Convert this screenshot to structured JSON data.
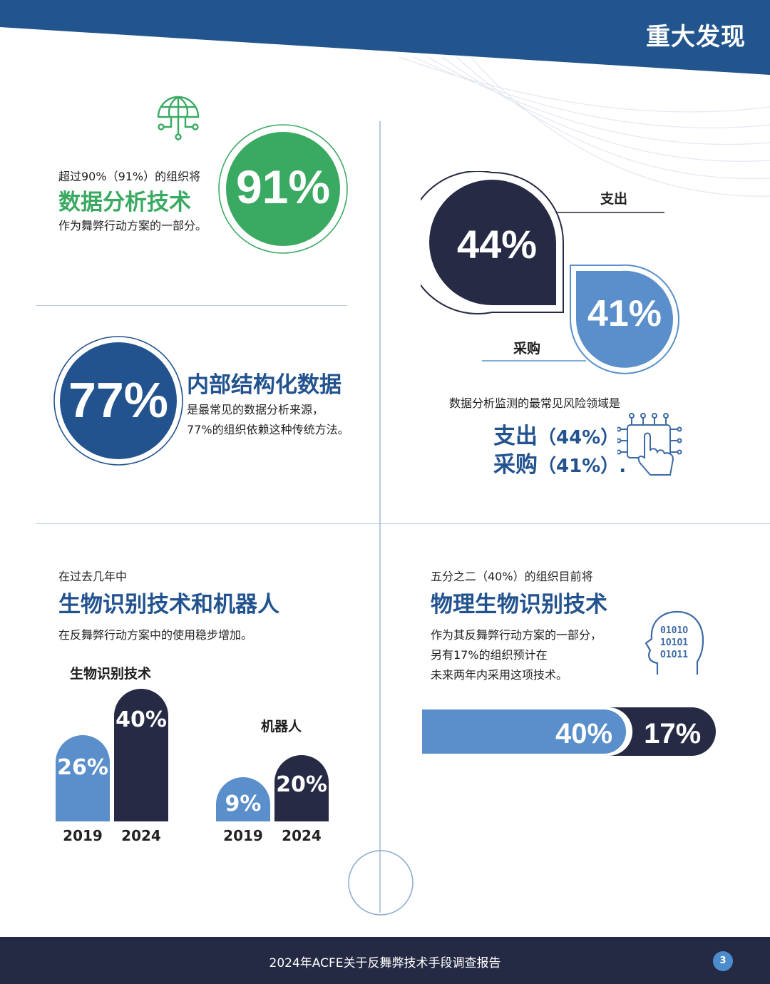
{
  "header": {
    "title": "重大发现"
  },
  "section_data_analytics": {
    "intro": "超过90%（91%）的组织将",
    "headline": "数据分析技术",
    "outro": "作为舞弊行动方案的一部分。",
    "stat": "91%",
    "icon": "globe-network-icon"
  },
  "section_structured_data": {
    "stat": "77%",
    "headline": "内部结构化数据",
    "line1": "是最常见的数据分析来源，",
    "line2": "77%的组织依赖这种传统方法。"
  },
  "section_risk_areas": {
    "expense_label": "支出",
    "expense_stat": "44%",
    "procurement_label": "采购",
    "procurement_stat": "41%",
    "caption": "数据分析监测的最常见风险领域是",
    "summary_line1_head": "支出",
    "summary_line1_val": "（44%）",
    "summary_line2_head": "采购",
    "summary_line2_val": "（41%）.",
    "icon": "touch-circuit-icon"
  },
  "section_biometrics_robots": {
    "intro": "在过去几年中",
    "headline": "生物识别技术和机器人",
    "outro": "在反舞弊行动方案中的使用稳步增加。"
  },
  "chart_data": [
    {
      "type": "bar",
      "title": "生物识别技术",
      "categories": [
        "2019",
        "2024"
      ],
      "values": [
        26,
        40
      ],
      "labels": [
        "26%",
        "40%"
      ],
      "colors": [
        "#5a8fcb",
        "#262a44"
      ]
    },
    {
      "type": "bar",
      "title": "机器人",
      "categories": [
        "2019",
        "2024"
      ],
      "values": [
        9,
        20
      ],
      "labels": [
        "9%",
        "20%"
      ],
      "colors": [
        "#5a8fcb",
        "#262a44"
      ]
    },
    {
      "type": "bar",
      "stacked": true,
      "orientation": "horizontal",
      "segments": [
        {
          "value": 40,
          "label": "40%",
          "color": "#5a8fcb"
        },
        {
          "value": 17,
          "label": "17%",
          "color": "#262a44"
        }
      ]
    }
  ],
  "section_physical_biometrics": {
    "intro": "五分之二（40%）的组织目前将",
    "headline": "物理生物识别技术",
    "line1": "作为其反舞弊行动方案的一部分，",
    "line2": "另有17%的组织预计在",
    "line3": "未来两年内采用这项技术。",
    "icon": "binary-head-icon"
  },
  "footer": {
    "text": "2024年ACFE关于反舞弊技术手段调查报告",
    "page": "3"
  },
  "colors": {
    "navy": "#262a44",
    "blue": "#22538f",
    "light_blue": "#5a8fcb",
    "green": "#3aaa62",
    "header": "#22558d"
  }
}
